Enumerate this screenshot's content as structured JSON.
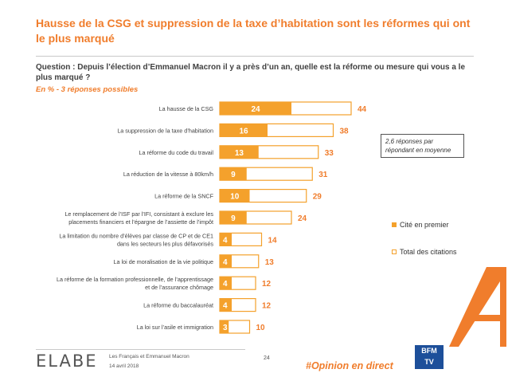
{
  "header": {
    "title": "Hausse de la CSG et suppression de la taxe d’habitation sont les réformes qui ont le plus marqué",
    "question": "Question : Depuis l’élection d’Emmanuel Macron il y a près d’un an, quelle est la réforme ou mesure qui vous a le plus marqué ?",
    "subtitle": "En % - 3 réponses possibles"
  },
  "note": "2,6 réponses par répondant en moyenne",
  "legend": {
    "first": "Cité en premier",
    "total": "Total des citations"
  },
  "colors": {
    "accent": "#f07d2c",
    "first_fill": "#f4a12c",
    "total_border": "#f4a12c",
    "text": "#404040"
  },
  "footer": {
    "logo": "ELABE",
    "line1": "Les Français et Emmanuel Macron",
    "line2": "14 avril 2018",
    "page": "24",
    "hashtag": "#Opinion en direct",
    "channel_logo_top": "BFM",
    "channel_logo_bottom": "TV"
  },
  "chart_data": {
    "type": "bar",
    "orientation": "horizontal",
    "categories": [
      "La hausse de la CSG",
      "La suppression de la taxe d’habitation",
      "La réforme du code du travail",
      "La réduction de la vitesse à 80km/h",
      "La réforme de la SNCF",
      "Le remplacement de l’ISF par l’IFI, consistant à exclure les placements financiers et l’épargne de l’assiette de l’impôt",
      "La limitation du nombre d’élèves par classe de CP et de CE1 dans les secteurs les plus défavorisés",
      "La loi de moralisation de la vie politique",
      "La réforme de la formation professionnelle, de l’apprentissage et de l’assurance chômage",
      "La réforme du baccalauréat",
      "La loi sur l’asile et immigration"
    ],
    "category_lines": [
      [
        "La hausse de la CSG"
      ],
      [
        "La suppression de la taxe d’habitation"
      ],
      [
        "La réforme du code du travail"
      ],
      [
        "La réduction de la vitesse à 80km/h"
      ],
      [
        "La réforme de la SNCF"
      ],
      [
        "Le remplacement de l’ISF par l’IFI, consistant à exclure les",
        "placements financiers et l’épargne de l’assiette de l’impôt"
      ],
      [
        "La limitation du nombre d’élèves par classe de CP et de CE1",
        "dans les secteurs les plus défavorisés"
      ],
      [
        "La loi de moralisation de la vie politique"
      ],
      [
        "La réforme de la formation professionnelle, de l’apprentissage",
        "et de l’assurance chômage"
      ],
      [
        "La réforme du baccalauréat"
      ],
      [
        "La loi sur l’asile et immigration"
      ]
    ],
    "series": [
      {
        "name": "Cité en premier",
        "values": [
          24,
          16,
          13,
          9,
          10,
          9,
          4,
          4,
          4,
          4,
          3
        ]
      },
      {
        "name": "Total des citations",
        "values": [
          44,
          38,
          33,
          31,
          29,
          24,
          14,
          13,
          12,
          12,
          10
        ]
      }
    ],
    "unit": "%",
    "xlim": [
      0,
      44
    ],
    "grid": false,
    "legend_position": "right"
  }
}
